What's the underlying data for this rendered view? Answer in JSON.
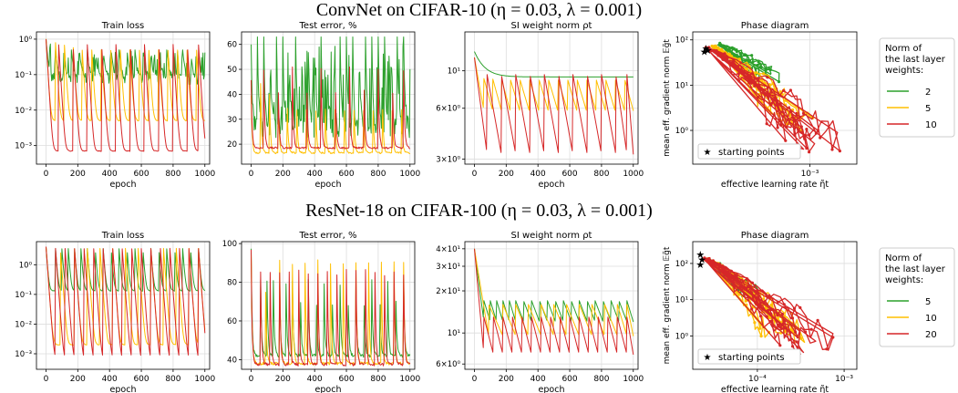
{
  "rows": [
    {
      "title": "ConvNet on CIFAR-10 (η = 0.03, λ = 0.001)",
      "legend": {
        "title_lines": [
          "Norm of",
          "the last layer",
          "weights:"
        ],
        "entries": [
          "2",
          "5",
          "10"
        ]
      }
    },
    {
      "title": "ResNet-18 on CIFAR-100 (η = 0.03, λ = 0.001)",
      "legend": {
        "title_lines": [
          "Norm of",
          "the last layer",
          "weights:"
        ],
        "entries": [
          "5",
          "10",
          "20"
        ]
      }
    }
  ],
  "colors": {
    "series": [
      "#2ca02c",
      "#ffbf00",
      "#d62728"
    ],
    "star": "#000000",
    "grid": "#dddddd"
  },
  "chart_data": [
    {
      "type": "line",
      "row": 0,
      "title": "Train loss",
      "xlabel": "epoch",
      "ylabel": "",
      "yscale": "log",
      "xlim": [
        -60,
        1030
      ],
      "ylim": [
        0.0003,
        1.6
      ],
      "xticks": [
        0,
        200,
        400,
        600,
        800,
        1000
      ],
      "xtick_labels": [
        "0",
        "200",
        "400",
        "600",
        "800",
        "1000"
      ],
      "yticks": [
        0.001,
        0.01,
        0.1,
        1
      ],
      "ytick_labels": [
        "10⁻³",
        "10⁻²",
        "10⁻¹",
        "10⁰"
      ],
      "grid": true,
      "series": [
        {
          "pattern": "noisy",
          "start": 1.0,
          "base": 0.05,
          "spread": 0.06,
          "peak": 0.5,
          "jumps": [
            60,
            110,
            160,
            210,
            260,
            310,
            360,
            410,
            460,
            510,
            560,
            610,
            660,
            710,
            760,
            810,
            860,
            910,
            960
          ]
        },
        {
          "pattern": "decay",
          "start": 1.0,
          "low": 0.005,
          "peak": 0.8,
          "jumps": [
            60,
            115,
            170,
            225,
            285,
            345,
            405,
            465,
            525,
            585,
            645,
            705,
            765,
            825,
            885,
            945
          ]
        },
        {
          "pattern": "decay",
          "start": 1.0,
          "low": 0.0007,
          "peak": 0.7,
          "jumps": [
            80,
            170,
            260,
            350,
            440,
            530,
            620,
            710,
            800,
            890,
            960
          ]
        }
      ]
    },
    {
      "type": "line",
      "row": 0,
      "title": "Test error, %",
      "xlabel": "epoch",
      "ylabel": "",
      "yscale": "linear",
      "xlim": [
        -60,
        1030
      ],
      "ylim": [
        12,
        65
      ],
      "xticks": [
        0,
        200,
        400,
        600,
        800,
        1000
      ],
      "xtick_labels": [
        "0",
        "200",
        "400",
        "600",
        "800",
        "1000"
      ],
      "yticks": [
        20,
        30,
        40,
        50,
        60
      ],
      "ytick_labels": [
        "20",
        "30",
        "40",
        "50",
        "60"
      ],
      "grid": true,
      "series": [
        {
          "pattern": "noisy",
          "start": 60,
          "base": 22,
          "spread": 8,
          "peak": 63,
          "jumps": [
            40,
            80,
            120,
            160,
            200,
            240,
            280,
            320,
            360,
            400,
            440,
            480,
            520,
            560,
            600,
            640,
            680,
            720,
            760,
            800,
            840,
            880,
            920,
            960
          ]
        },
        {
          "pattern": "decay",
          "start": 40,
          "low": 16.5,
          "peak": 45,
          "jumps": [
            60,
            115,
            170,
            225,
            285,
            345,
            405,
            465,
            525,
            585,
            645,
            705,
            765,
            825,
            885,
            945
          ]
        },
        {
          "pattern": "decay",
          "start": 45,
          "low": 18.5,
          "peak": 50,
          "jumps": [
            80,
            170,
            260,
            350,
            440,
            530,
            620,
            710,
            800,
            890,
            960
          ]
        }
      ]
    },
    {
      "type": "line",
      "row": 0,
      "title": "SI weight norm ρt",
      "xlabel": "epoch",
      "ylabel": "",
      "yscale": "log",
      "xlim": [
        -60,
        1030
      ],
      "ylim": [
        2.8,
        17
      ],
      "xticks": [
        0,
        200,
        400,
        600,
        800,
        1000
      ],
      "xtick_labels": [
        "0",
        "200",
        "400",
        "600",
        "800",
        "1000"
      ],
      "yticks": [
        3,
        6,
        10
      ],
      "ytick_labels": [
        "3×10⁰",
        "6×10⁰",
        "10¹"
      ],
      "grid": true,
      "series": [
        {
          "pattern": "smooth",
          "start": 13,
          "end": 9.2,
          "jumps": []
        },
        {
          "pattern": "saw",
          "start": 12,
          "high": 9.0,
          "low": 5.8,
          "jumps": [
            60,
            115,
            170,
            225,
            285,
            345,
            405,
            465,
            525,
            585,
            645,
            705,
            765,
            825,
            885,
            945
          ]
        },
        {
          "pattern": "saw",
          "start": 12,
          "high": 9.5,
          "low": 3.2,
          "jumps": [
            80,
            170,
            260,
            350,
            440,
            530,
            620,
            710,
            800,
            890,
            960
          ]
        }
      ]
    },
    {
      "type": "scatter",
      "row": 0,
      "title": "Phase diagram",
      "xlabel": "effective learning rate η̃t",
      "ylabel": "mean eff. gradient norm 𝔼g̃t",
      "xscale": "log",
      "yscale": "log",
      "xlim": [
        0.00014,
        0.0022
      ],
      "ylim": [
        0.18,
        150
      ],
      "xticks": [
        0.001
      ],
      "xtick_labels": [
        "10⁻³"
      ],
      "yticks": [
        1,
        10,
        100
      ],
      "ytick_labels": [
        "10⁰",
        "10¹",
        "10²"
      ],
      "grid": true,
      "annotation": "starting points",
      "start_points": [
        [
          0.000175,
          65
        ],
        [
          0.00018,
          60
        ],
        [
          0.00017,
          55
        ]
      ],
      "series": [
        {
          "x_range": [
            0.00022,
            0.00062
          ],
          "y_range": [
            12,
            80
          ],
          "loops": 5
        },
        {
          "x_range": [
            0.0002,
            0.00105
          ],
          "y_range": [
            0.8,
            70
          ],
          "loops": 7
        },
        {
          "x_range": [
            0.00018,
            0.0018
          ],
          "y_range": [
            0.25,
            65
          ],
          "loops": 9
        }
      ]
    },
    {
      "type": "line",
      "row": 1,
      "title": "Train loss",
      "xlabel": "epoch",
      "ylabel": "",
      "yscale": "log",
      "xlim": [
        -60,
        1030
      ],
      "ylim": [
        0.0003,
        6
      ],
      "xticks": [
        0,
        200,
        400,
        600,
        800,
        1000
      ],
      "xtick_labels": [
        "0",
        "200",
        "400",
        "600",
        "800",
        "1000"
      ],
      "yticks": [
        0.001,
        0.01,
        0.1,
        1
      ],
      "ytick_labels": [
        "10⁻³",
        "10⁻²",
        "10⁻¹",
        "10⁰"
      ],
      "grid": true,
      "series": [
        {
          "pattern": "decay",
          "start": 4.0,
          "low": 0.13,
          "peak": 3.5,
          "jumps": [
            60,
            100,
            140,
            180,
            220,
            260,
            310,
            360,
            410,
            460,
            510,
            560,
            610,
            660,
            710,
            760,
            810,
            860,
            910,
            960
          ]
        },
        {
          "pattern": "decay",
          "start": 4.0,
          "low": 0.002,
          "peak": 3.5,
          "jumps": [
            90,
            180,
            260,
            340,
            420,
            500,
            580,
            660,
            740,
            820,
            900,
            960
          ]
        },
        {
          "pattern": "decay",
          "start": 4.0,
          "low": 0.0006,
          "peak": 3.5,
          "jumps": [
            60,
            120,
            180,
            240,
            300,
            360,
            420,
            480,
            540,
            600,
            660,
            720,
            780,
            840,
            900,
            960
          ]
        }
      ]
    },
    {
      "type": "line",
      "row": 1,
      "title": "Test error, %",
      "xlabel": "epoch",
      "ylabel": "",
      "yscale": "linear",
      "xlim": [
        -60,
        1030
      ],
      "ylim": [
        35,
        101
      ],
      "xticks": [
        0,
        200,
        400,
        600,
        800,
        1000
      ],
      "xtick_labels": [
        "0",
        "200",
        "400",
        "600",
        "800",
        "1000"
      ],
      "yticks": [
        40,
        60,
        80,
        100
      ],
      "ytick_labels": [
        "40",
        "60",
        "80",
        "100"
      ],
      "grid": true,
      "series": [
        {
          "pattern": "decay",
          "start": 98,
          "low": 42,
          "peak": 80,
          "jumps": [
            60,
            100,
            140,
            180,
            220,
            260,
            310,
            360,
            410,
            460,
            510,
            560,
            610,
            660,
            710,
            760,
            810,
            860,
            910,
            960
          ]
        },
        {
          "pattern": "decay",
          "start": 95,
          "low": 38,
          "peak": 90,
          "jumps": [
            90,
            180,
            260,
            340,
            420,
            500,
            580,
            660,
            740,
            820,
            900,
            960
          ]
        },
        {
          "pattern": "decay",
          "start": 96,
          "low": 37.5,
          "peak": 85,
          "jumps": [
            60,
            120,
            180,
            240,
            300,
            360,
            420,
            480,
            540,
            600,
            660,
            720,
            780,
            840,
            900,
            960
          ]
        }
      ]
    },
    {
      "type": "line",
      "row": 1,
      "title": "SI weight norm ρt",
      "xlabel": "epoch",
      "ylabel": "",
      "yscale": "log",
      "xlim": [
        -60,
        1030
      ],
      "ylim": [
        5.5,
        45
      ],
      "xticks": [
        0,
        200,
        400,
        600,
        800,
        1000
      ],
      "xtick_labels": [
        "0",
        "200",
        "400",
        "600",
        "800",
        "1000"
      ],
      "yticks": [
        6,
        10,
        20,
        30,
        40
      ],
      "ytick_labels": [
        "6×10⁰",
        "10¹",
        "2×10¹",
        "3×10¹",
        "4×10¹"
      ],
      "grid": true,
      "series": [
        {
          "pattern": "saw",
          "start": 40,
          "high": 17,
          "low": 12,
          "jumps": [
            60,
            100,
            140,
            180,
            220,
            260,
            310,
            360,
            410,
            460,
            510,
            560,
            610,
            660,
            710,
            760,
            810,
            860,
            910,
            960
          ]
        },
        {
          "pattern": "saw",
          "start": 40,
          "high": 16,
          "low": 9.5,
          "jumps": [
            90,
            180,
            260,
            340,
            420,
            500,
            580,
            660,
            740,
            820,
            900,
            960
          ]
        },
        {
          "pattern": "saw",
          "start": 40,
          "high": 13,
          "low": 7,
          "jumps": [
            60,
            120,
            180,
            240,
            300,
            360,
            420,
            480,
            540,
            600,
            660,
            720,
            780,
            840,
            900,
            960
          ]
        }
      ]
    },
    {
      "type": "scatter",
      "row": 1,
      "title": "Phase diagram",
      "xlabel": "effective learning rate η̃t",
      "ylabel": "mean eff. gradient norm 𝔼g̃t",
      "xscale": "log",
      "yscale": "log",
      "xlim": [
        1.8e-05,
        0.0014
      ],
      "ylim": [
        0.12,
        400
      ],
      "xticks": [
        0.0001,
        0.001
      ],
      "xtick_labels": [
        "10⁻⁴",
        "10⁻³"
      ],
      "yticks": [
        1,
        10,
        100
      ],
      "ytick_labels": [
        "10⁰",
        "10¹",
        "10²"
      ],
      "grid": true,
      "annotation": "starting points",
      "start_points": [
        [
          2.2e-05,
          180
        ],
        [
          2.3e-05,
          130
        ],
        [
          2.2e-05,
          95
        ]
      ],
      "series": [
        {
          "x_range": [
            2.8e-05,
            0.00012
          ],
          "y_range": [
            10,
            120
          ],
          "loops": 6
        },
        {
          "x_range": [
            2.6e-05,
            0.00035
          ],
          "y_range": [
            0.5,
            130
          ],
          "loops": 8
        },
        {
          "x_range": [
            2.4e-05,
            0.0009
          ],
          "y_range": [
            0.2,
            140
          ],
          "loops": 9
        }
      ]
    }
  ]
}
